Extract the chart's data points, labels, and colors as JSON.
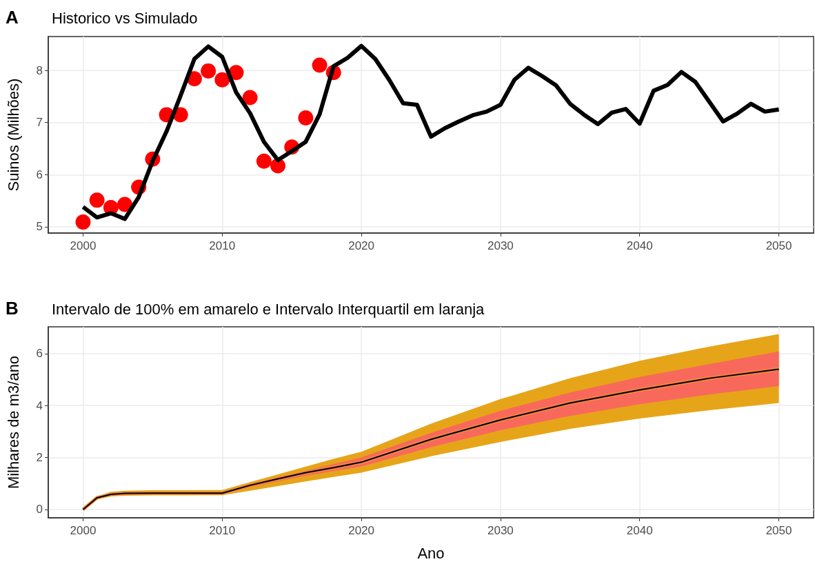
{
  "chart_data": [
    {
      "type": "line",
      "title": "Historico vs Simulado",
      "ylabel": "Suinos (Milhões)",
      "annotations": [
        "A"
      ],
      "xlim": [
        1997.5,
        2052.5
      ],
      "ylim": [
        4.88,
        8.65
      ],
      "xticks": [
        2000,
        2010,
        2020,
        2030,
        2040,
        2050
      ],
      "yticks": [
        5,
        6,
        7,
        8
      ],
      "grid": true,
      "x": [
        2000,
        2001,
        2002,
        2003,
        2004,
        2005,
        2006,
        2007,
        2008,
        2009,
        2010,
        2011,
        2012,
        2013,
        2014,
        2015,
        2016,
        2017,
        2018,
        2019,
        2020,
        2021,
        2022,
        2023,
        2024,
        2025,
        2026,
        2027,
        2028,
        2029,
        2030,
        2031,
        2032,
        2033,
        2034,
        2035,
        2036,
        2037,
        2038,
        2039,
        2040,
        2041,
        2042,
        2043,
        2044,
        2045,
        2046,
        2047,
        2048,
        2049,
        2050
      ],
      "series": [
        {
          "color": "#000000",
          "marker": "none",
          "values": [
            5.38,
            5.18,
            5.26,
            5.15,
            5.57,
            6.26,
            6.83,
            7.51,
            8.22,
            8.46,
            8.26,
            7.58,
            7.18,
            6.63,
            6.28,
            6.45,
            6.63,
            7.16,
            8.08,
            8.24,
            8.47,
            8.22,
            7.82,
            7.37,
            7.34,
            6.73,
            6.89,
            7.02,
            7.14,
            7.21,
            7.34,
            7.82,
            8.05,
            7.89,
            7.71,
            7.36,
            7.15,
            6.97,
            7.19,
            7.26,
            6.98,
            7.61,
            7.72,
            7.97,
            7.78,
            7.4,
            7.02,
            7.17,
            7.36,
            7.21,
            7.25
          ]
        },
        {
          "type": "scatter",
          "color": "#ff0000",
          "marker": "circle",
          "x": [
            2000,
            2001,
            2002,
            2003,
            2004,
            2005,
            2006,
            2007,
            2008,
            2009,
            2010,
            2011,
            2012,
            2013,
            2014,
            2015,
            2016,
            2017,
            2018
          ],
          "values": [
            5.09,
            5.51,
            5.37,
            5.43,
            5.76,
            6.3,
            7.15,
            7.15,
            7.84,
            7.99,
            7.82,
            7.96,
            7.48,
            6.26,
            6.17,
            6.53,
            7.09,
            8.1,
            7.96
          ]
        }
      ]
    },
    {
      "type": "line",
      "title": "Intervalo de 100% em amarelo e Intervalo Interquartil em laranja",
      "xlabel": "Ano",
      "ylabel": "Milhares de m3/ano",
      "annotations": [
        "B"
      ],
      "xlim": [
        1997.5,
        2052.5
      ],
      "ylim": [
        -0.32,
        7.03
      ],
      "xticks": [
        2000,
        2010,
        2020,
        2030,
        2040,
        2050
      ],
      "yticks": [
        0,
        2,
        4,
        6
      ],
      "grid": true,
      "x": [
        2000,
        2001,
        2002,
        2003,
        2005,
        2010,
        2012,
        2014,
        2016,
        2018,
        2020,
        2025,
        2030,
        2035,
        2040,
        2045,
        2050
      ],
      "series": [
        {
          "color": "#e6a519",
          "values": [
            0,
            0.45,
            0.58,
            0.62,
            0.63,
            0.63,
            0.93,
            1.18,
            1.42,
            1.61,
            1.82,
            2.7,
            3.45,
            4.1,
            4.6,
            5.05,
            5.4
          ],
          "lower": [
            0,
            0.38,
            0.5,
            0.53,
            0.54,
            0.55,
            0.72,
            0.9,
            1.08,
            1.25,
            1.42,
            2.05,
            2.6,
            3.1,
            3.5,
            3.82,
            4.1
          ],
          "upper": [
            0,
            0.5,
            0.68,
            0.72,
            0.74,
            0.75,
            1.05,
            1.35,
            1.65,
            1.95,
            2.22,
            3.3,
            4.25,
            5.05,
            5.72,
            6.27,
            6.75
          ]
        },
        {
          "color": "#f8695c",
          "values": [
            0,
            0.45,
            0.58,
            0.62,
            0.63,
            0.63,
            0.93,
            1.18,
            1.42,
            1.61,
            1.82,
            2.7,
            3.45,
            4.1,
            4.6,
            5.05,
            5.4
          ],
          "lower": [
            0,
            0.42,
            0.55,
            0.58,
            0.59,
            0.6,
            0.85,
            1.08,
            1.3,
            1.48,
            1.65,
            2.4,
            3.05,
            3.6,
            4.05,
            4.42,
            4.75
          ],
          "upper": [
            0,
            0.48,
            0.62,
            0.66,
            0.68,
            0.69,
            0.98,
            1.25,
            1.5,
            1.75,
            2.0,
            2.95,
            3.8,
            4.5,
            5.1,
            5.6,
            6.08
          ]
        },
        {
          "color": "#000000",
          "marker": "none",
          "values": [
            0,
            0.45,
            0.58,
            0.62,
            0.63,
            0.63,
            0.93,
            1.18,
            1.42,
            1.61,
            1.82,
            2.7,
            3.45,
            4.1,
            4.6,
            5.05,
            5.4
          ]
        }
      ]
    }
  ]
}
